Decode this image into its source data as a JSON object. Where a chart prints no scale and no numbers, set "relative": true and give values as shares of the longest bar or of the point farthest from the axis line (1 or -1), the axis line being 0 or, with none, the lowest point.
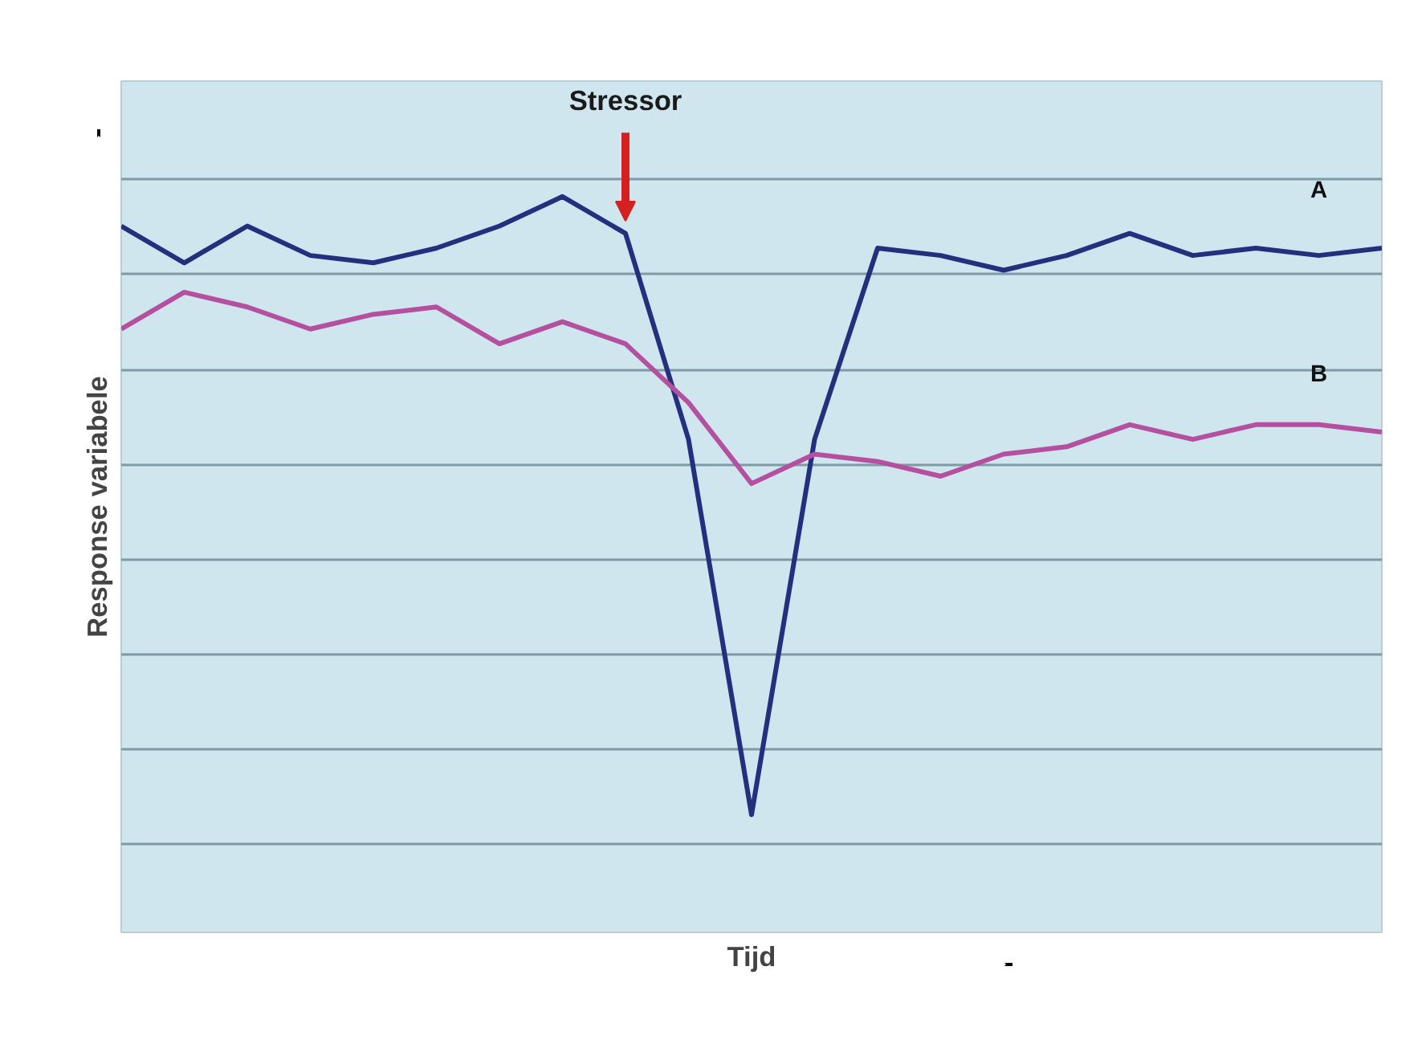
{
  "chart_data": {
    "type": "line",
    "relative": true,
    "xlabel": "Tijd",
    "ylabel": "Response variabele",
    "grid": "y",
    "marker": "none",
    "line_style": "solid",
    "categories": [
      null,
      null,
      null,
      null,
      null,
      null,
      null,
      null,
      null,
      null,
      null,
      null,
      null,
      null,
      null,
      null,
      null,
      null,
      null,
      null,
      null
    ],
    "annotations": [
      "Stressor"
    ],
    "series": [
      {
        "name": "A",
        "color": "#22307e",
        "values": [
          0.96,
          0.91,
          0.96,
          0.92,
          0.91,
          0.93,
          0.96,
          1.0,
          0.95,
          0.67,
          0.16,
          0.67,
          0.93,
          0.92,
          0.9,
          0.92,
          0.95,
          0.92,
          0.93,
          0.92,
          0.93
        ]
      },
      {
        "name": "B",
        "color": "#b4509f",
        "values": [
          0.82,
          0.87,
          0.85,
          0.82,
          0.84,
          0.85,
          0.8,
          0.83,
          0.8,
          0.72,
          0.61,
          0.65,
          0.64,
          0.62,
          0.65,
          0.66,
          0.69,
          0.67,
          0.69,
          0.69,
          0.68
        ]
      }
    ]
  }
}
